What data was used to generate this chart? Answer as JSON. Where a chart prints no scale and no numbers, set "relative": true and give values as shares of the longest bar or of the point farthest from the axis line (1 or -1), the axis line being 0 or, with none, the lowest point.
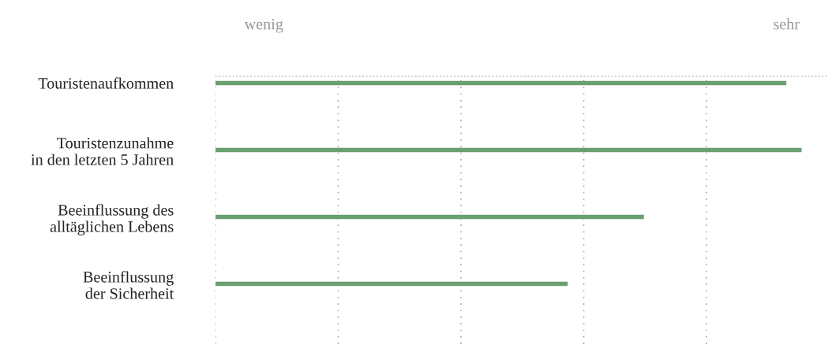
{
  "chart_data": {
    "type": "bar",
    "orientation": "horizontal",
    "relative": true,
    "categories": [
      "Touristenaufkommen",
      "Touristenzunahme\nin den letzten 5 Jahren",
      "Beeinflussung des\nalltäglichen Lebens",
      "Beeinflussung\nder Sicherheit"
    ],
    "values": [
      0.974,
      1,
      0.731,
      0.601
    ],
    "color": "#6a9f72",
    "annotations": [
      "wenig",
      "sehr"
    ],
    "grid": "x"
  }
}
